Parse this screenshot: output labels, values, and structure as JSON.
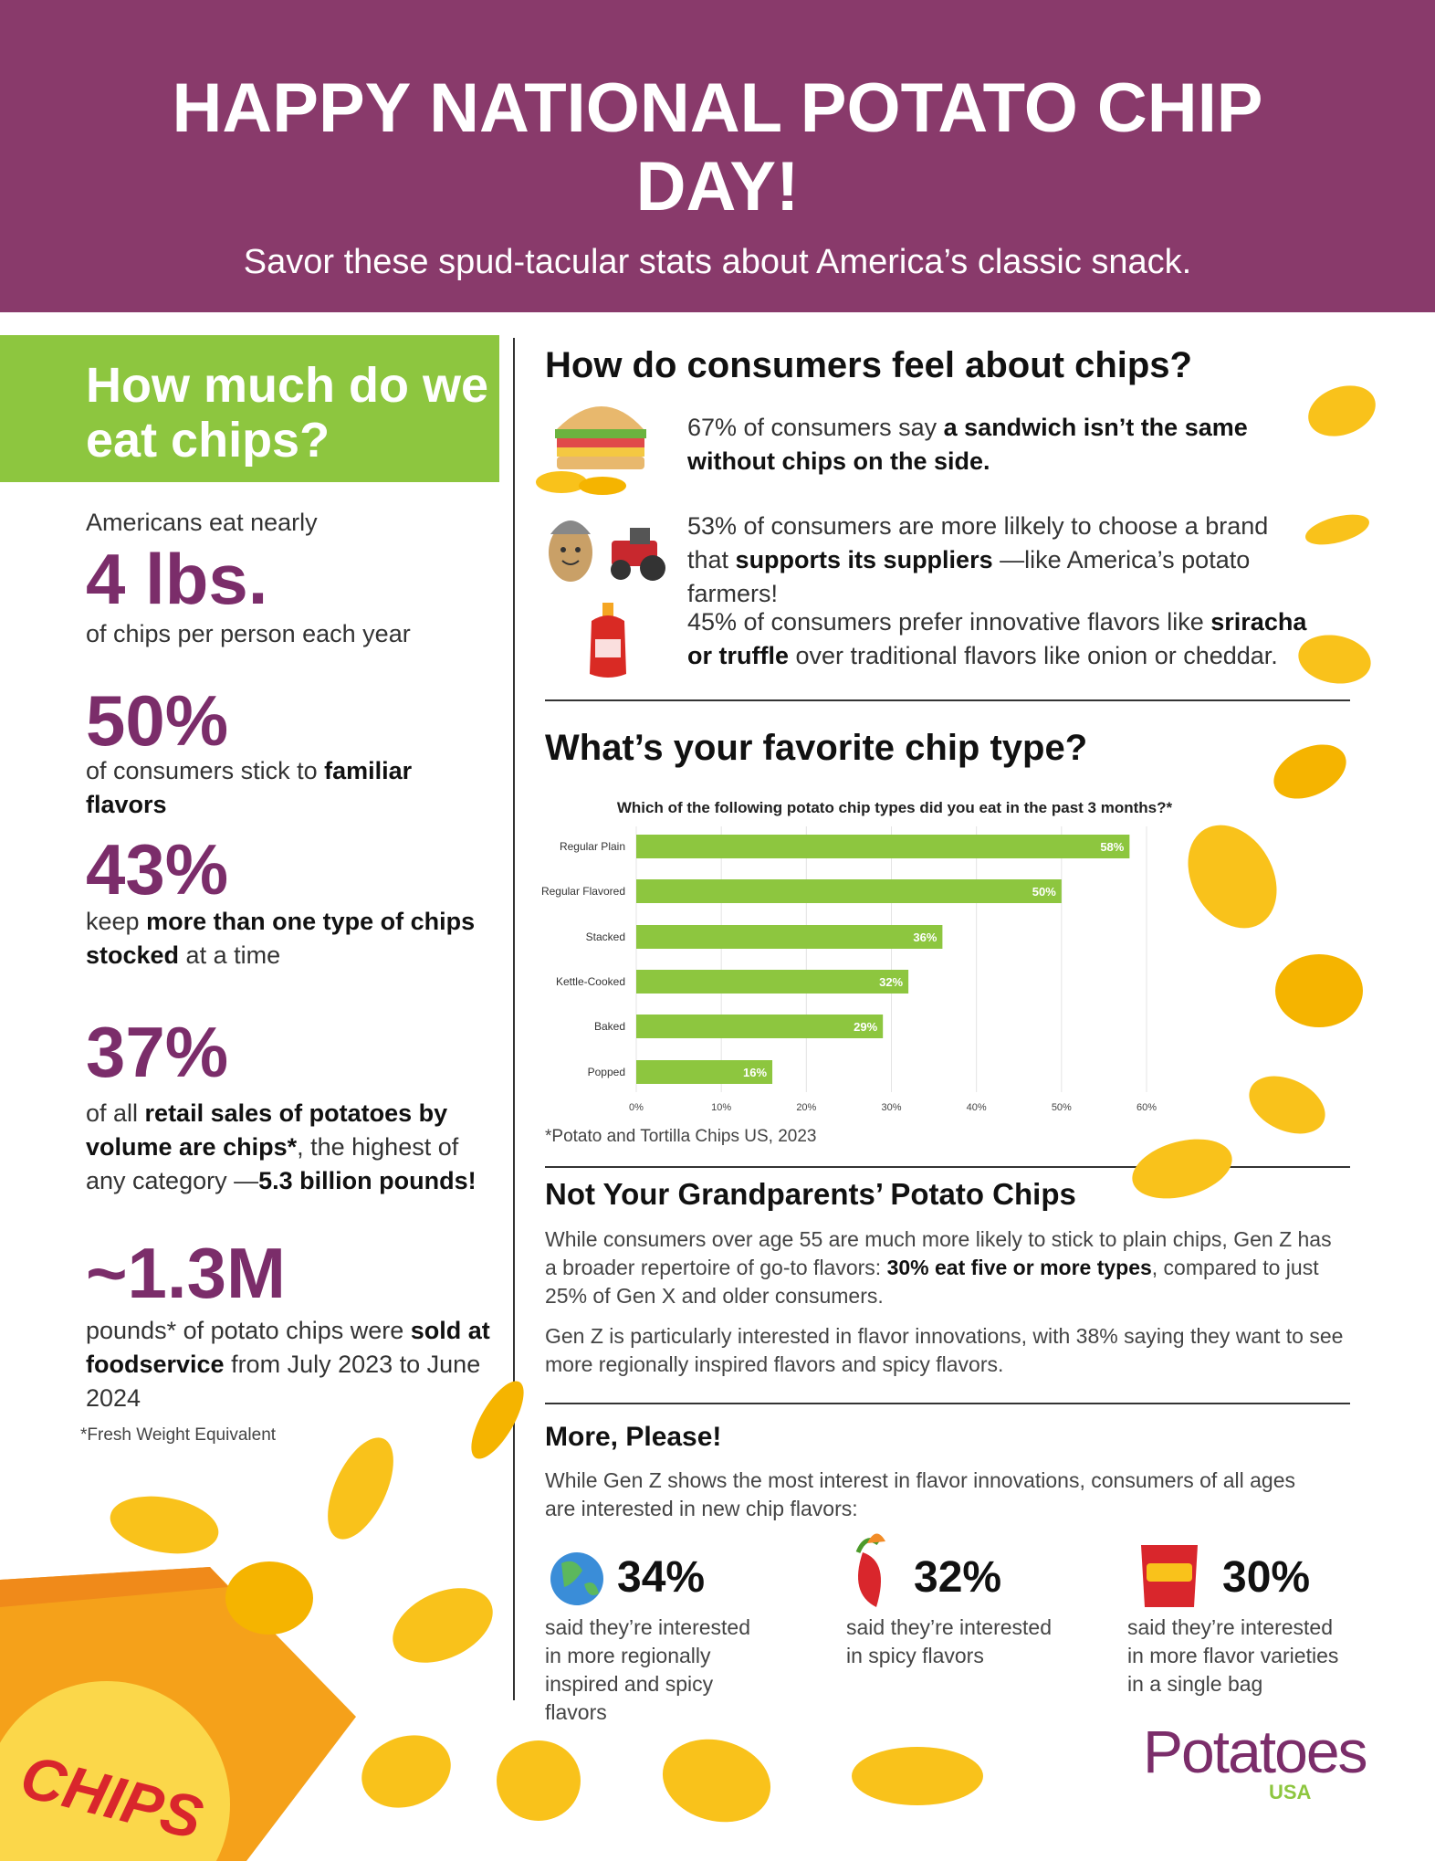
{
  "header": {
    "title": "HAPPY NATIONAL POTATO CHIP DAY!",
    "subtitle": "Savor these spud-tacular stats about America’s classic snack."
  },
  "left": {
    "heading": "How much do we eat chips?",
    "stats": [
      {
        "intro": "Americans eat nearly",
        "big": "4 lbs.",
        "text": [
          {
            "text": "of chips per person each year",
            "bold": false
          }
        ]
      },
      {
        "big": "50%",
        "text": [
          {
            "text": "of consumers stick to ",
            "bold": false
          },
          {
            "text": "familiar flavors",
            "bold": true
          }
        ]
      },
      {
        "big": "43%",
        "text": [
          {
            "text": "keep ",
            "bold": false
          },
          {
            "text": "more than one type of chips stocked",
            "bold": true
          },
          {
            "text": " at a time",
            "bold": false
          }
        ]
      },
      {
        "big": "37%",
        "text": [
          {
            "text": "of all ",
            "bold": false
          },
          {
            "text": "retail sales of potatoes by volume are chips*",
            "bold": true
          },
          {
            "text": ", the highest of any category —",
            "bold": false
          },
          {
            "text": "5.3 billion pounds!",
            "bold": true
          }
        ]
      },
      {
        "big": "~1.3M",
        "text": [
          {
            "text": "pounds* of potato chips were ",
            "bold": false
          },
          {
            "text": "sold at foodservice",
            "bold": true
          },
          {
            "text": " from July 2023 to June 2024",
            "bold": false
          }
        ]
      }
    ],
    "footnote": "*Fresh Weight Equivalent",
    "bag_label": "CHIPS"
  },
  "feelings": {
    "heading": "How do consumers feel about chips?",
    "items": [
      [
        {
          "text": "67% of consumers say ",
          "bold": false
        },
        {
          "text": "a sandwich isn’t the same without chips on the side.",
          "bold": true
        }
      ],
      [
        {
          "text": "53% of consumers are more lilkely to choose a brand that ",
          "bold": false
        },
        {
          "text": "supports its suppliers",
          "bold": true
        },
        {
          "text": " —like America’s potato farmers!",
          "bold": false
        }
      ],
      [
        {
          "text": "45% of consumers prefer innovative flavors like ",
          "bold": false
        },
        {
          "text": "sriracha or truffle",
          "bold": true
        },
        {
          "text": " over traditional flavors like onion or cheddar.",
          "bold": false
        }
      ]
    ]
  },
  "favorite": {
    "heading": "What’s your favorite chip type?",
    "footnote": "*Potato and Tortilla Chips US, 2023"
  },
  "chart_data": {
    "type": "bar",
    "orientation": "horizontal",
    "title": "Which of the following potato chip types did you eat in the past 3 months?*",
    "categories": [
      "Regular Plain",
      "Regular Flavored",
      "Stacked",
      "Kettle-Cooked",
      "Baked",
      "Popped"
    ],
    "values": [
      58,
      50,
      36,
      32,
      29,
      16
    ],
    "value_labels": [
      "58%",
      "50%",
      "36%",
      "32%",
      "29%",
      "16%"
    ],
    "color": "#8dc63f",
    "xlim": [
      0,
      60
    ],
    "xticks": [
      {
        "value": 0,
        "label": "0%"
      },
      {
        "value": 10,
        "label": "10%"
      },
      {
        "value": 20,
        "label": "20%"
      },
      {
        "value": 30,
        "label": "30%"
      },
      {
        "value": 40,
        "label": "40%"
      },
      {
        "value": 50,
        "label": "50%"
      },
      {
        "value": 60,
        "label": "60%"
      }
    ],
    "grid": true
  },
  "grandparents": {
    "heading": "Not Your Grandparents’ Potato Chips",
    "paragraphs": [
      [
        {
          "text": "While consumers over age 55 are much more likely to stick to plain chips, Gen Z has a broader repertoire of go-to flavors: ",
          "bold": false
        },
        {
          "text": "30% eat five or more types",
          "bold": true
        },
        {
          "text": ", compared to just 25% of Gen X and older consumers.",
          "bold": false
        }
      ],
      [
        {
          "text": "Gen Z is particularly interested in flavor innovations, with 38% saying they want to see more regionally inspired flavors and spicy flavors.",
          "bold": false
        }
      ]
    ]
  },
  "more": {
    "heading": "More, Please!",
    "intro": "While Gen Z shows the most interest in flavor innovations, consumers of all ages are interested in new chip flavors:",
    "stats": [
      {
        "value": "34%",
        "text": "said they’re interested in more regionally inspired and spicy flavors"
      },
      {
        "value": "32%",
        "text": "said they’re interested in spicy flavors"
      },
      {
        "value": "30%",
        "text": "said they’re interested in more flavor varieties in a single bag"
      }
    ]
  },
  "logo": {
    "name": "Potatoes",
    "sub": "USA"
  }
}
